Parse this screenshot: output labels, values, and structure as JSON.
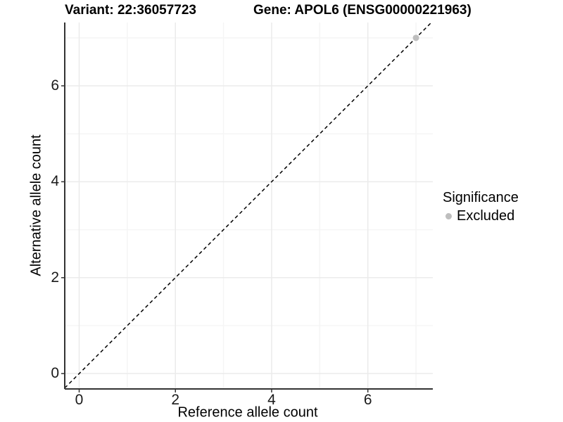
{
  "chart_data": {
    "type": "scatter",
    "title_left": "Variant: 22:36057723",
    "title_right": "Gene: APOL6 (ENSG00000221963)",
    "xlabel": "Reference allele count",
    "ylabel": "Alternative allele count",
    "xlim": [
      -0.3,
      7.35
    ],
    "ylim": [
      -0.32,
      7.32
    ],
    "x_ticks": [
      0,
      2,
      4,
      6
    ],
    "y_ticks": [
      0,
      2,
      4,
      6
    ],
    "x_minor_ticks": [
      1,
      3,
      5,
      7
    ],
    "y_minor_ticks": [
      1,
      3,
      5,
      7
    ],
    "grid": "major+minor",
    "identity_line": {
      "slope": 1,
      "intercept": 0,
      "style": "dashed",
      "color": "#000000"
    },
    "series": [
      {
        "name": "Excluded",
        "color": "#bebebe",
        "points": [
          {
            "x": 7,
            "y": 7
          }
        ]
      }
    ],
    "legend": {
      "title": "Significance",
      "position": "right"
    },
    "colors": {
      "axis_line": "#333333",
      "tick_mark": "#333333",
      "grid_major": "#ebebeb",
      "grid_minor": "#f5f5f5",
      "point": "#bebebe",
      "text": "#000000"
    }
  }
}
